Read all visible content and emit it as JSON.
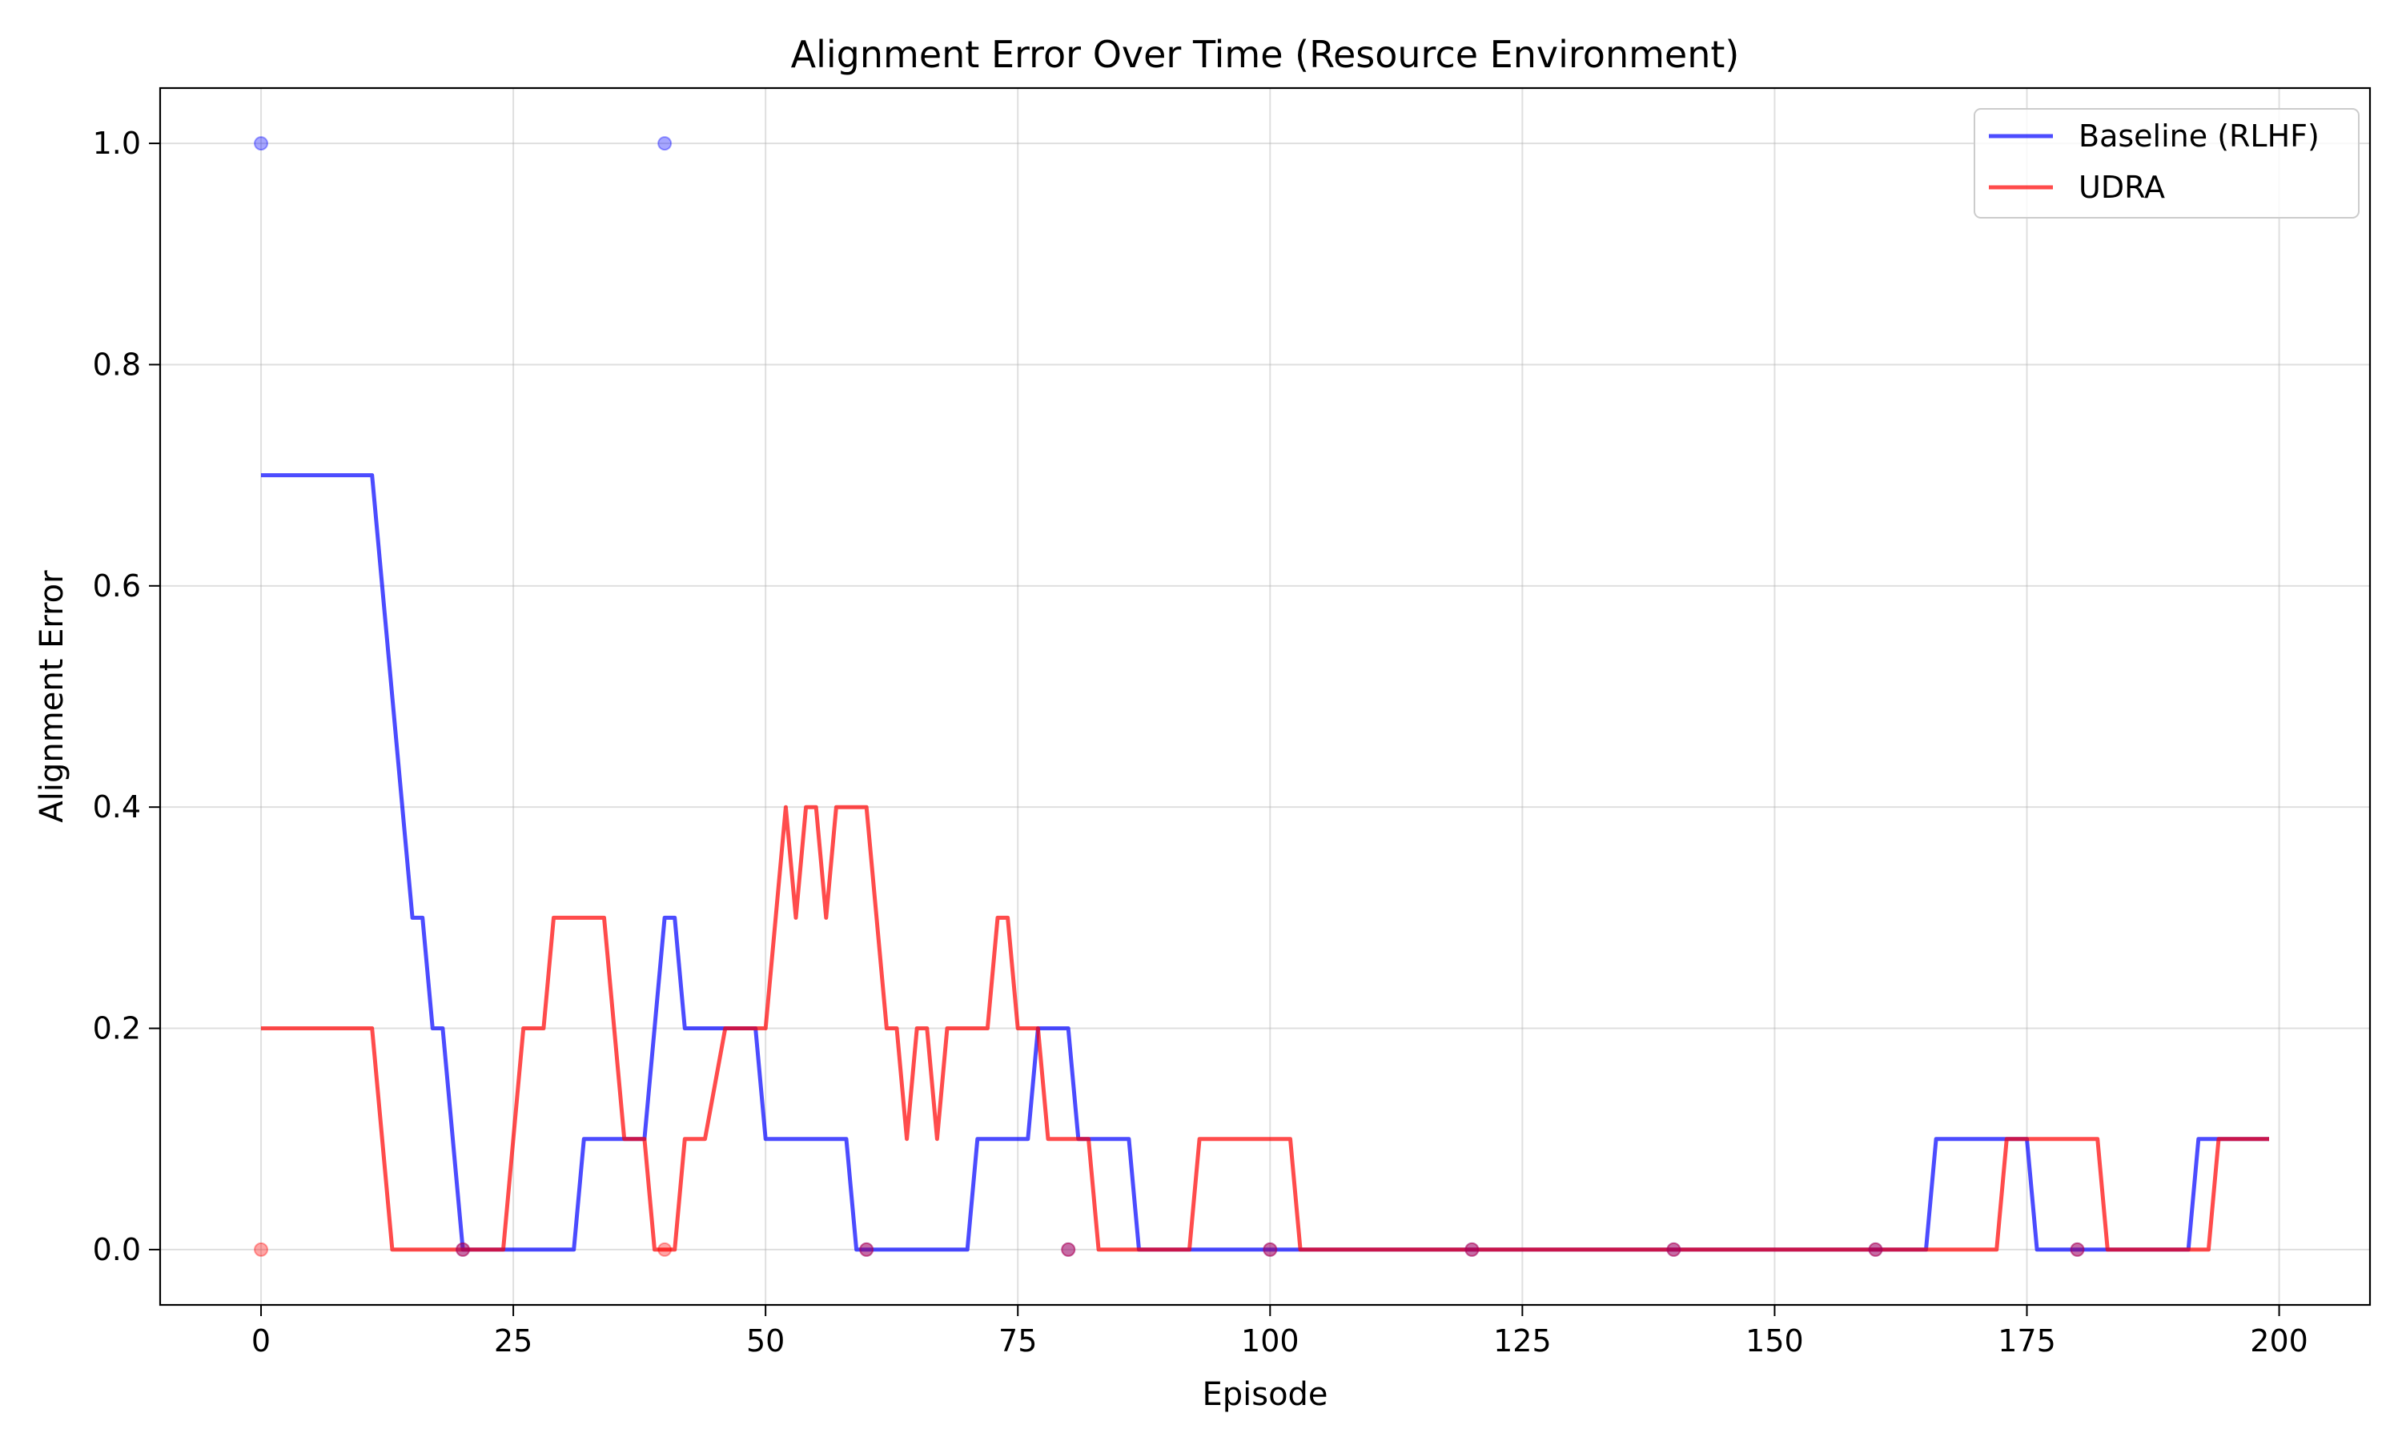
{
  "chart_data": {
    "type": "line",
    "title": "Alignment Error Over Time (Resource Environment)",
    "xlabel": "Episode",
    "ylabel": "Alignment Error",
    "xlim": [
      -10,
      209
    ],
    "ylim": [
      -0.05,
      1.05
    ],
    "xticks": [
      0,
      25,
      50,
      75,
      100,
      125,
      150,
      175,
      200
    ],
    "xtick_labels": [
      "0",
      "25",
      "50",
      "75",
      "100",
      "125",
      "150",
      "175",
      "200"
    ],
    "yticks": [
      0.0,
      0.2,
      0.4,
      0.6,
      0.8,
      1.0
    ],
    "ytick_labels": [
      "0.0",
      "0.2",
      "0.4",
      "0.6",
      "0.8",
      "1.0"
    ],
    "grid": true,
    "legend_position": "top-right",
    "series": [
      {
        "name": "Baseline (RLHF)",
        "color": "#0000ff",
        "points": [
          [
            0,
            0.7
          ],
          [
            11,
            0.7
          ],
          [
            15,
            0.3
          ],
          [
            16,
            0.3
          ],
          [
            17,
            0.2
          ],
          [
            18,
            0.2
          ],
          [
            20,
            0.0
          ],
          [
            31,
            0.0
          ],
          [
            32,
            0.1
          ],
          [
            38,
            0.1
          ],
          [
            40,
            0.3
          ],
          [
            41,
            0.3
          ],
          [
            42,
            0.2
          ],
          [
            49,
            0.2
          ],
          [
            50,
            0.1
          ],
          [
            58,
            0.1
          ],
          [
            59,
            0.0
          ],
          [
            70,
            0.0
          ],
          [
            71,
            0.1
          ],
          [
            76,
            0.1
          ],
          [
            77,
            0.2
          ],
          [
            80,
            0.2
          ],
          [
            81,
            0.1
          ],
          [
            86,
            0.1
          ],
          [
            87,
            0.0
          ],
          [
            165,
            0.0
          ],
          [
            166,
            0.1
          ],
          [
            175,
            0.1
          ],
          [
            176,
            0.0
          ],
          [
            191,
            0.0
          ],
          [
            192,
            0.1
          ],
          [
            199,
            0.1
          ]
        ],
        "markers": [
          [
            0,
            1.0
          ],
          [
            20,
            0.0
          ],
          [
            40,
            1.0
          ],
          [
            60,
            0.0
          ],
          [
            80,
            0.0
          ],
          [
            100,
            0.0
          ],
          [
            120,
            0.0
          ],
          [
            140,
            0.0
          ],
          [
            160,
            0.0
          ],
          [
            180,
            0.0
          ]
        ]
      },
      {
        "name": "UDRA",
        "color": "#ff0000",
        "points": [
          [
            0,
            0.2
          ],
          [
            11,
            0.2
          ],
          [
            13,
            0.0
          ],
          [
            24,
            0.0
          ],
          [
            26,
            0.2
          ],
          [
            28,
            0.2
          ],
          [
            29,
            0.3
          ],
          [
            34,
            0.3
          ],
          [
            36,
            0.1
          ],
          [
            38,
            0.1
          ],
          [
            39,
            0.0
          ],
          [
            41,
            0.0
          ],
          [
            42,
            0.1
          ],
          [
            44,
            0.1
          ],
          [
            46,
            0.2
          ],
          [
            50,
            0.2
          ],
          [
            52,
            0.4
          ],
          [
            53,
            0.3
          ],
          [
            54,
            0.4
          ],
          [
            55,
            0.4
          ],
          [
            56,
            0.3
          ],
          [
            57,
            0.4
          ],
          [
            60,
            0.4
          ],
          [
            62,
            0.2
          ],
          [
            63,
            0.2
          ],
          [
            64,
            0.1
          ],
          [
            65,
            0.2
          ],
          [
            66,
            0.2
          ],
          [
            67,
            0.1
          ],
          [
            68,
            0.2
          ],
          [
            72,
            0.2
          ],
          [
            73,
            0.3
          ],
          [
            74,
            0.3
          ],
          [
            75,
            0.2
          ],
          [
            77,
            0.2
          ],
          [
            78,
            0.1
          ],
          [
            82,
            0.1
          ],
          [
            83,
            0.0
          ],
          [
            87,
            0.0
          ],
          [
            92,
            0.0
          ],
          [
            93,
            0.1
          ],
          [
            102,
            0.1
          ],
          [
            103,
            0.0
          ],
          [
            172,
            0.0
          ],
          [
            173,
            0.1
          ],
          [
            182,
            0.1
          ],
          [
            183,
            0.0
          ],
          [
            193,
            0.0
          ],
          [
            194,
            0.1
          ],
          [
            199,
            0.1
          ]
        ],
        "markers": [
          [
            0,
            0.0
          ],
          [
            20,
            0.0
          ],
          [
            40,
            0.0
          ],
          [
            60,
            0.0
          ],
          [
            80,
            0.0
          ],
          [
            100,
            0.0
          ],
          [
            120,
            0.0
          ],
          [
            140,
            0.0
          ],
          [
            160,
            0.0
          ],
          [
            180,
            0.0
          ]
        ]
      }
    ]
  }
}
